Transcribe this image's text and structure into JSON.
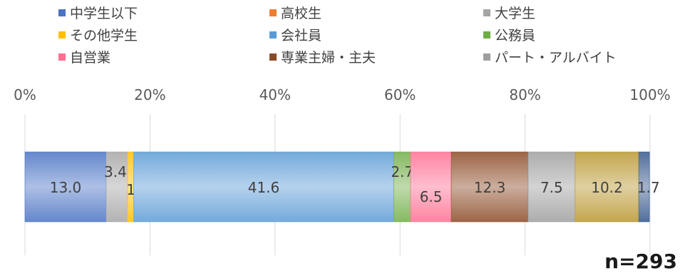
{
  "chart_data": {
    "type": "bar",
    "orientation": "horizontal-stacked-100",
    "xlim": [
      0,
      100
    ],
    "ticks": [
      "0%",
      "20%",
      "40%",
      "60%",
      "80%",
      "100%"
    ],
    "legend_position": "top",
    "series": [
      {
        "name": "中学生以下",
        "value": 13.0,
        "label": "13.0",
        "color": "#4a72c4"
      },
      {
        "name": "大学生",
        "value": 3.4,
        "label": "3.4",
        "color": "#a5a5a5"
      },
      {
        "name": "その他学生",
        "value": 1.0,
        "label": "1.0",
        "color": "#ffc000"
      },
      {
        "name": "会社員",
        "value": 41.6,
        "label": "41.6",
        "color": "#5b9bd5"
      },
      {
        "name": "公務員",
        "value": 2.7,
        "label": "2.7",
        "color": "#70ad47"
      },
      {
        "name": "自営業",
        "value": 6.5,
        "label": "6.5",
        "color": "#ff6f91"
      },
      {
        "name": "専業主婦・主夫",
        "value": 12.3,
        "label": "12.3",
        "color": "#8b4a26"
      },
      {
        "name": "パート・アルバイト",
        "value": 7.5,
        "label": "7.5",
        "color": "#9e9e9e"
      },
      {
        "name": "",
        "value": 10.2,
        "label": "10.2",
        "color": "#b8962e"
      },
      {
        "name": "",
        "value": 1.7,
        "label": "1.7",
        "color": "#34558a"
      }
    ],
    "legend": [
      {
        "name": "中学生以下",
        "color": "#4a72c4"
      },
      {
        "name": "高校生",
        "color": "#ed7d31"
      },
      {
        "name": "大学生",
        "color": "#a5a5a5"
      },
      {
        "name": "その他学生",
        "color": "#ffc000"
      },
      {
        "name": "会社員",
        "color": "#5b9bd5"
      },
      {
        "name": "公務員",
        "color": "#70ad47"
      },
      {
        "name": "自営業",
        "color": "#ff6f91"
      },
      {
        "name": "専業主婦・主夫",
        "color": "#8b4a26"
      },
      {
        "name": "パート・アルバイト",
        "color": "#9e9e9e"
      }
    ],
    "annotation": "n=293"
  }
}
